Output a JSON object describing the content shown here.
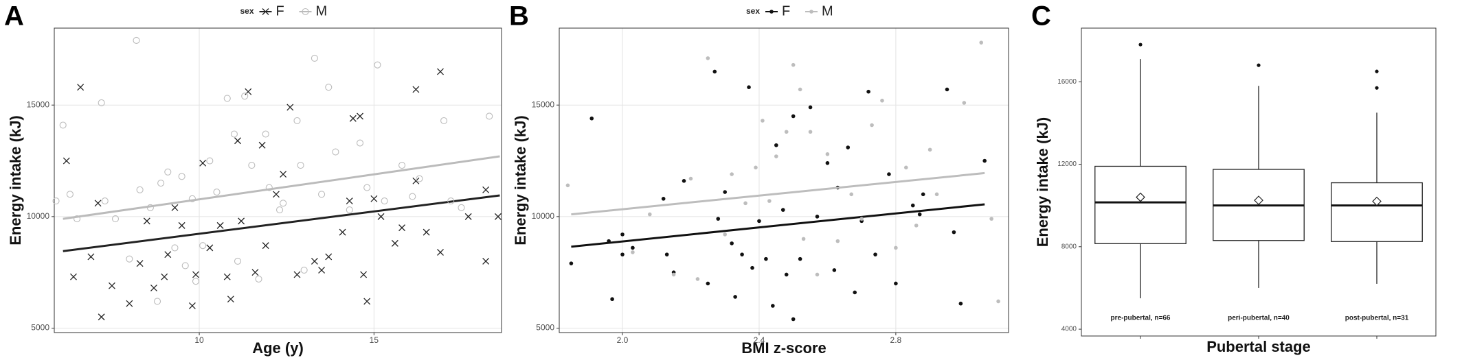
{
  "chart_data": [
    {
      "type": "scatter",
      "panel": "A",
      "xlabel": "Age (y)",
      "ylabel": "Energy intake (kJ)",
      "legend_title": "sex",
      "grid": true,
      "xlim": [
        5.85,
        18.65
      ],
      "ylim": [
        4800,
        18450
      ],
      "xticks": [
        10,
        15
      ],
      "yticks": [
        5000,
        10000,
        15000
      ],
      "series": [
        {
          "name": "F",
          "color": "#222222",
          "marker": "x",
          "x": [
            6.2,
            6.6,
            6.4,
            6.9,
            7.2,
            7.1,
            7.5,
            8.0,
            8.3,
            8.5,
            8.7,
            9.0,
            9.1,
            9.3,
            9.5,
            9.8,
            9.9,
            10.1,
            10.3,
            10.6,
            10.8,
            10.9,
            11.1,
            11.2,
            11.4,
            11.6,
            11.8,
            11.9,
            12.2,
            12.4,
            12.6,
            12.8,
            13.3,
            13.5,
            13.7,
            14.1,
            14.3,
            14.4,
            14.6,
            14.7,
            14.8,
            15.0,
            15.2,
            15.6,
            15.8,
            16.2,
            16.2,
            16.5,
            16.9,
            16.9,
            17.7,
            18.2,
            18.2,
            18.55
          ],
          "values": [
            12500,
            15800,
            7300,
            8200,
            5500,
            10600,
            6900,
            6100,
            7900,
            9800,
            6800,
            7300,
            8300,
            10400,
            9600,
            6000,
            7400,
            12400,
            8600,
            9600,
            7300,
            6300,
            13400,
            9800,
            15600,
            7500,
            13200,
            8700,
            11000,
            11900,
            14900,
            7400,
            8000,
            7600,
            8200,
            9300,
            10700,
            14400,
            14500,
            7400,
            6200,
            10800,
            10000,
            8800,
            9500,
            11600,
            15700,
            9300,
            16500,
            8400,
            10000,
            8000,
            11200,
            10000
          ],
          "trend": {
            "x": [
              6.1,
              18.6
            ],
            "values": [
              8450,
              10950
            ]
          }
        },
        {
          "name": "M",
          "color": "#bbbbbb",
          "marker": "circle",
          "x": [
            5.9,
            6.1,
            6.3,
            6.5,
            7.2,
            7.3,
            7.6,
            8.0,
            8.2,
            8.3,
            8.6,
            8.8,
            8.9,
            9.1,
            9.3,
            9.5,
            9.6,
            9.8,
            9.9,
            10.1,
            10.3,
            10.5,
            10.8,
            11.0,
            11.1,
            11.3,
            11.5,
            11.7,
            11.9,
            12.0,
            12.3,
            12.4,
            12.8,
            12.9,
            13.0,
            13.3,
            13.5,
            13.7,
            13.9,
            14.3,
            14.6,
            14.8,
            15.1,
            15.3,
            15.8,
            16.1,
            16.3,
            17.0,
            17.2,
            17.5,
            18.3
          ],
          "values": [
            10700,
            14100,
            11000,
            9900,
            15100,
            10700,
            9900,
            8100,
            17900,
            11200,
            10400,
            6200,
            11500,
            12000,
            8600,
            11800,
            7800,
            10800,
            7100,
            8700,
            12500,
            11100,
            15300,
            13700,
            8000,
            15400,
            12300,
            7200,
            13700,
            11300,
            10300,
            10600,
            14300,
            12300,
            7600,
            17100,
            11000,
            15800,
            12900,
            10300,
            13300,
            11300,
            16800,
            10700,
            12300,
            10900,
            11700,
            14300,
            10700,
            10400,
            14500
          ],
          "trend": {
            "x": [
              6.1,
              18.6
            ],
            "values": [
              9900,
              12700
            ]
          }
        }
      ]
    },
    {
      "type": "scatter",
      "panel": "B",
      "xlabel": "BMI z-score",
      "ylabel": "Energy intake (kJ)",
      "legend_title": "sex",
      "grid": true,
      "xlim": [
        1.815,
        3.13
      ],
      "ylim": [
        4800,
        18450
      ],
      "xticks": [
        {
          "value": 2,
          "label": "2.0"
        },
        2.4,
        2.8
      ],
      "yticks": [
        5000,
        10000,
        15000
      ],
      "series": [
        {
          "name": "F",
          "color": "#111111",
          "marker": "dot",
          "x": [
            1.85,
            1.91,
            1.96,
            1.97,
            2.0,
            2.0,
            2.03,
            2.12,
            2.13,
            2.15,
            2.18,
            2.25,
            2.27,
            2.28,
            2.3,
            2.32,
            2.33,
            2.35,
            2.37,
            2.38,
            2.4,
            2.42,
            2.44,
            2.45,
            2.47,
            2.48,
            2.5,
            2.5,
            2.52,
            2.55,
            2.57,
            2.6,
            2.62,
            2.63,
            2.66,
            2.68,
            2.7,
            2.72,
            2.74,
            2.78,
            2.8,
            2.85,
            2.87,
            2.88,
            2.95,
            2.97,
            2.99,
            3.06
          ],
          "values": [
            7900,
            14400,
            8900,
            6300,
            8300,
            9200,
            8600,
            10800,
            8300,
            7500,
            11600,
            7000,
            16500,
            9900,
            11100,
            8800,
            6400,
            8300,
            15800,
            7700,
            9800,
            8100,
            6000,
            13200,
            10300,
            7400,
            14500,
            5400,
            8100,
            14900,
            10000,
            12400,
            7600,
            11300,
            13100,
            6600,
            9800,
            15600,
            8300,
            11900,
            7000,
            10500,
            10100,
            11000,
            15700,
            9300,
            6100,
            12500
          ],
          "trend": {
            "x": [
              1.85,
              3.06
            ],
            "values": [
              8650,
              10550
            ]
          }
        },
        {
          "name": "M",
          "color": "#bdbdbd",
          "marker": "dot",
          "x": [
            1.84,
            2.03,
            2.08,
            2.15,
            2.2,
            2.22,
            2.25,
            2.3,
            2.32,
            2.36,
            2.39,
            2.41,
            2.43,
            2.45,
            2.48,
            2.5,
            2.52,
            2.53,
            2.55,
            2.57,
            2.6,
            2.63,
            2.67,
            2.7,
            2.73,
            2.76,
            2.8,
            2.83,
            2.86,
            2.9,
            2.92,
            3.0,
            3.05,
            3.08,
            3.1
          ],
          "values": [
            11400,
            8400,
            10100,
            7400,
            11700,
            7200,
            17100,
            9200,
            11900,
            10600,
            12200,
            14300,
            10700,
            12700,
            13800,
            16800,
            15700,
            9000,
            13800,
            7400,
            12800,
            8900,
            11000,
            9900,
            14100,
            15200,
            8600,
            12200,
            9600,
            13000,
            11000,
            15100,
            17800,
            9900,
            6200
          ],
          "trend": {
            "x": [
              1.85,
              3.06
            ],
            "values": [
              10100,
              11950
            ]
          }
        }
      ]
    },
    {
      "type": "box",
      "panel": "C",
      "xlabel": "Pubertal stage",
      "ylabel": "Energy intake (kJ)",
      "grid": false,
      "ylim": [
        3670,
        18600
      ],
      "yticks": [
        4000,
        8000,
        12000,
        16000
      ],
      "categories": [
        "pre-pubertal, n=66",
        "peri-pubertal, n=40",
        "post-pubertal, n=31"
      ],
      "boxes": [
        {
          "min": 5500,
          "q1": 8150,
          "median": 10150,
          "q3": 11900,
          "max": 17100,
          "mean": 10400,
          "outliers": [
            17800
          ]
        },
        {
          "min": 6000,
          "q1": 8300,
          "median": 10000,
          "q3": 11750,
          "max": 15800,
          "mean": 10250,
          "outliers": [
            16800
          ]
        },
        {
          "min": 6200,
          "q1": 8250,
          "median": 10000,
          "q3": 11100,
          "max": 14500,
          "mean": 10200,
          "outliers": [
            16500,
            15700
          ]
        }
      ]
    }
  ]
}
